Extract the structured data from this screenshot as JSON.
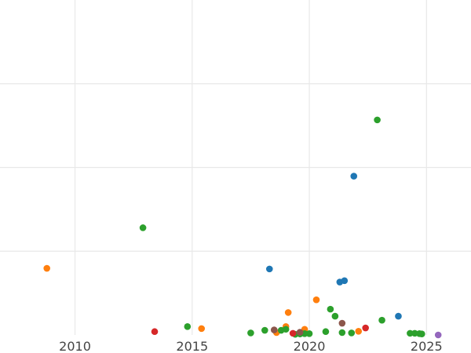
{
  "chart_data": {
    "type": "scatter",
    "title": "",
    "xlabel": "",
    "ylabel": "",
    "grid": true,
    "xlim": [
      2006.8,
      2026.9
    ],
    "ylim": [
      0,
      1000
    ],
    "x_ticks": [
      2010,
      2015,
      2020,
      2025
    ],
    "x_tick_labels": [
      "2010",
      "2015",
      "2020",
      "2025"
    ],
    "y_gridlines": [
      250,
      500,
      750
    ],
    "colors": {
      "blue": "#1f77b4",
      "orange": "#ff7f0e",
      "green": "#2ca02c",
      "red": "#d62728",
      "purple": "#9467bd",
      "brown": "#8c564b"
    },
    "series": [
      {
        "color_key": "blue",
        "points": [
          {
            "x": 2018.3,
            "y": 197
          },
          {
            "x": 2021.3,
            "y": 158
          },
          {
            "x": 2021.5,
            "y": 162
          },
          {
            "x": 2021.9,
            "y": 474
          },
          {
            "x": 2023.8,
            "y": 56
          }
        ]
      },
      {
        "color_key": "orange",
        "points": [
          {
            "x": 2008.8,
            "y": 199
          },
          {
            "x": 2015.4,
            "y": 19
          },
          {
            "x": 2018.6,
            "y": 7
          },
          {
            "x": 2019.0,
            "y": 25
          },
          {
            "x": 2019.1,
            "y": 67
          },
          {
            "x": 2019.8,
            "y": 17
          },
          {
            "x": 2020.3,
            "y": 105
          },
          {
            "x": 2022.1,
            "y": 11
          }
        ]
      },
      {
        "color_key": "green",
        "points": [
          {
            "x": 2012.9,
            "y": 320
          },
          {
            "x": 2014.8,
            "y": 25
          },
          {
            "x": 2017.5,
            "y": 6
          },
          {
            "x": 2018.1,
            "y": 14
          },
          {
            "x": 2018.8,
            "y": 14
          },
          {
            "x": 2019.0,
            "y": 17
          },
          {
            "x": 2019.4,
            "y": 2
          },
          {
            "x": 2019.6,
            "y": 3
          },
          {
            "x": 2019.8,
            "y": 4
          },
          {
            "x": 2020.0,
            "y": 4
          },
          {
            "x": 2020.7,
            "y": 10
          },
          {
            "x": 2020.9,
            "y": 77
          },
          {
            "x": 2021.1,
            "y": 56
          },
          {
            "x": 2021.4,
            "y": 7
          },
          {
            "x": 2021.8,
            "y": 6
          },
          {
            "x": 2022.9,
            "y": 642
          },
          {
            "x": 2023.1,
            "y": 44
          },
          {
            "x": 2024.3,
            "y": 5
          },
          {
            "x": 2024.5,
            "y": 5
          },
          {
            "x": 2024.7,
            "y": 4
          },
          {
            "x": 2024.8,
            "y": 3
          }
        ]
      },
      {
        "color_key": "red",
        "points": [
          {
            "x": 2013.4,
            "y": 10
          },
          {
            "x": 2019.3,
            "y": 5
          },
          {
            "x": 2022.4,
            "y": 21
          }
        ]
      },
      {
        "color_key": "purple",
        "points": [
          {
            "x": 2025.5,
            "y": 0
          }
        ]
      },
      {
        "color_key": "brown",
        "points": [
          {
            "x": 2018.5,
            "y": 15
          },
          {
            "x": 2019.6,
            "y": 8
          },
          {
            "x": 2021.4,
            "y": 35
          }
        ]
      }
    ]
  }
}
